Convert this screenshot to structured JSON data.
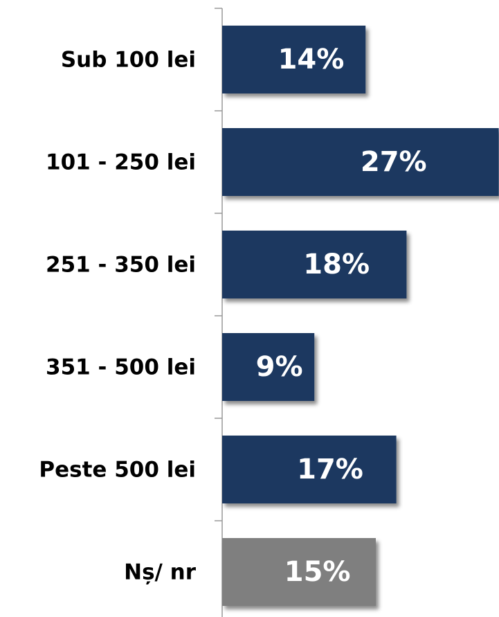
{
  "chart_data": {
    "type": "hbar",
    "categories": [
      "Sub 100 lei",
      "101 - 250 lei",
      "251 - 350 lei",
      "351 - 500 lei",
      "Peste 500 lei",
      "Nș/ nr"
    ],
    "values": [
      14,
      27,
      18,
      9,
      17,
      15
    ],
    "value_labels": [
      "14%",
      "27%",
      "18%",
      "9%",
      "17%",
      "15%"
    ],
    "colors": [
      "#1d3961",
      "#1d3961",
      "#1d3961",
      "#1d3961",
      "#1d3961",
      "#7f7f7f"
    ]
  }
}
